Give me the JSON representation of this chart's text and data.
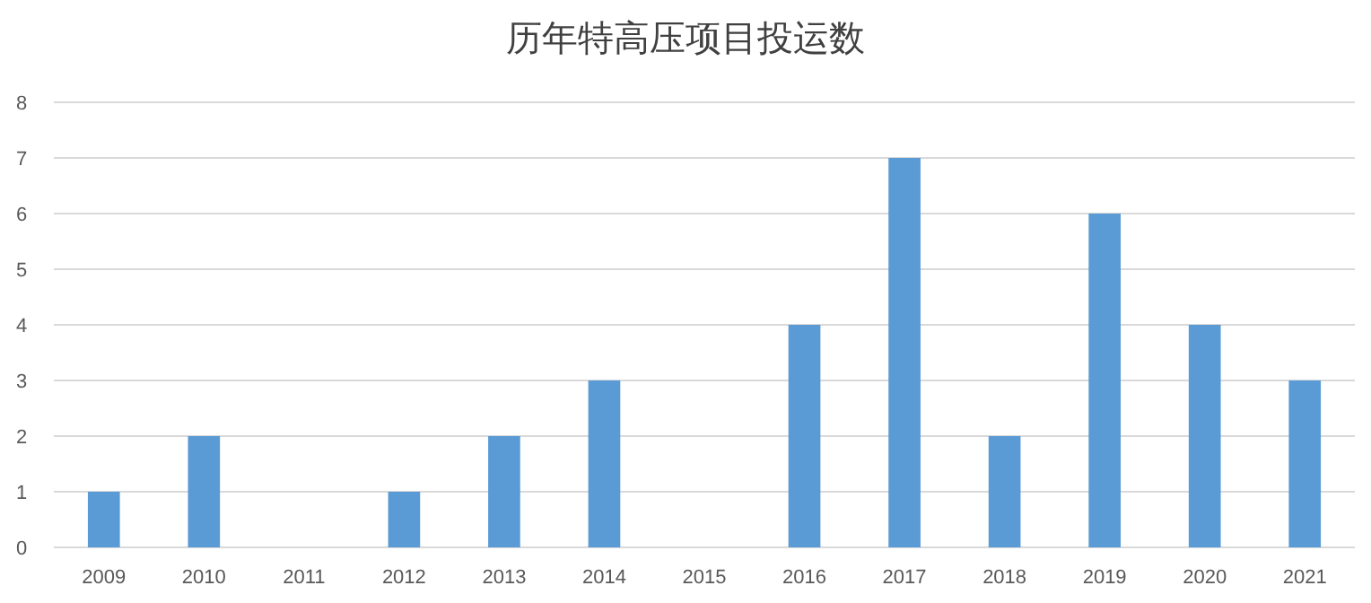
{
  "chart_data": {
    "type": "bar",
    "title": "历年特高压项目投运数",
    "categories": [
      "2009",
      "2010",
      "2011",
      "2012",
      "2013",
      "2014",
      "2015",
      "2016",
      "2017",
      "2018",
      "2019",
      "2020",
      "2021"
    ],
    "values": [
      1,
      2,
      0,
      1,
      2,
      3,
      0,
      4,
      7,
      2,
      6,
      4,
      3
    ],
    "color": "#5b9bd5",
    "ylim": [
      0,
      8
    ],
    "yticks": [
      0,
      1,
      2,
      3,
      4,
      5,
      6,
      7,
      8
    ],
    "grid": "y"
  }
}
